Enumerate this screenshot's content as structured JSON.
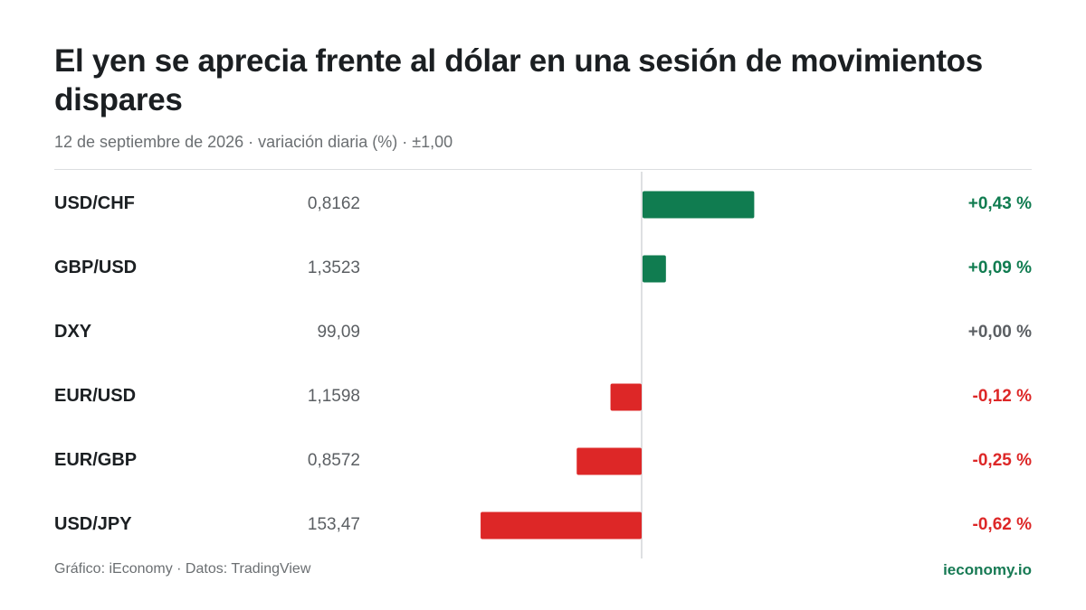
{
  "header": {
    "title": "El yen se aprecia frente al dólar en una sesión de movimientos dispares",
    "subtitle": "12 de septiembre de 2026 · variación diaria (%) · ±1,00"
  },
  "footer": {
    "credit": "Gráfico: iEconomy · Datos: TradingView",
    "brand": "ieconomy.io"
  },
  "colors": {
    "positive": "#107c50",
    "negative": "#dd2727",
    "neutral": "#5b5f63",
    "axis": "#d4d6d8"
  },
  "chart_data": {
    "type": "bar",
    "orientation": "horizontal",
    "xlim": [
      -1.0,
      1.0
    ],
    "categories": [
      "USD/CHF",
      "GBP/USD",
      "DXY",
      "EUR/USD",
      "EUR/GBP",
      "USD/JPY"
    ],
    "prices": [
      "0,8162",
      "1,3523",
      "99,09",
      "1,1598",
      "0,8572",
      "153,47"
    ],
    "values": [
      0.43,
      0.09,
      0.0,
      -0.12,
      -0.25,
      -0.62
    ],
    "value_labels": [
      "+0,43 %",
      "+0,09 %",
      "+0,00 %",
      "-0,12 %",
      "-0,25 %",
      "-0,62 %"
    ]
  }
}
